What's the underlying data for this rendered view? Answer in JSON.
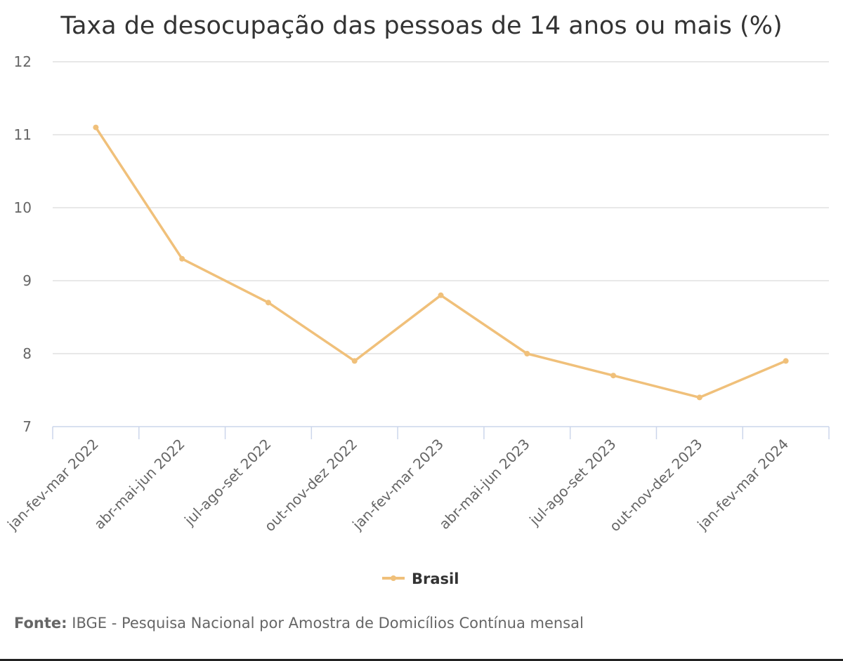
{
  "chart_data": {
    "type": "line",
    "title": "Taxa de desocupação das pessoas de 14 anos ou mais (%)",
    "categories": [
      "jan-fev-mar 2022",
      "abr-mai-jun 2022",
      "jul-ago-set 2022",
      "out-nov-dez 2022",
      "jan-fev-mar 2023",
      "abr-mai-jun 2023",
      "jul-ago-set 2023",
      "out-nov-dez 2023",
      "jan-fev-mar 2024"
    ],
    "series": [
      {
        "name": "Brasil",
        "values": [
          11.1,
          9.3,
          8.7,
          7.9,
          8.8,
          8.0,
          7.7,
          7.4,
          7.9
        ],
        "color": "#f0c07a"
      }
    ],
    "ylim": [
      7,
      12
    ],
    "yticks": [
      "7",
      "8",
      "9",
      "10",
      "11",
      "12"
    ],
    "grid": true,
    "legend_position": "bottom-center"
  },
  "footer": {
    "label": "Fonte:",
    "text": "IBGE - Pesquisa Nacional por Amostra de Domicílios Contínua mensal"
  }
}
